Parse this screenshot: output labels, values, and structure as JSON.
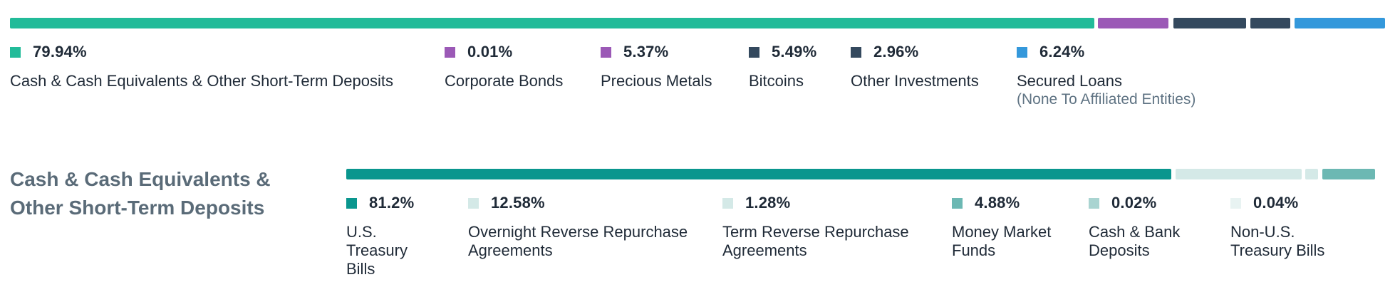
{
  "chart_data": [
    {
      "type": "bar",
      "stacked": true,
      "title": "",
      "unit": "%",
      "segments": [
        {
          "pct_label": "79.94%",
          "value": 79.94,
          "label": "Cash & Cash Equivalents & Other Short-Term Deposits",
          "sublabel": "",
          "color": "#22bb99"
        },
        {
          "pct_label": "0.01%",
          "value": 0.01,
          "label": "Corporate Bonds",
          "sublabel": "",
          "color": "#9b59b6"
        },
        {
          "pct_label": "5.37%",
          "value": 5.37,
          "label": "Precious Metals",
          "sublabel": "",
          "color": "#9b59b6"
        },
        {
          "pct_label": "5.49%",
          "value": 5.49,
          "label": "Bitcoins",
          "sublabel": "",
          "color": "#34495e"
        },
        {
          "pct_label": "2.96%",
          "value": 2.96,
          "label": "Other Investments",
          "sublabel": "",
          "color": "#34495e"
        },
        {
          "pct_label": "6.24%",
          "value": 6.24,
          "label": "Secured Loans",
          "sublabel": "(None To Affiliated Entities)",
          "color": "#3498db"
        }
      ]
    },
    {
      "type": "bar",
      "stacked": true,
      "title": "Cash & Cash Equivalents & Other Short-Term Deposits",
      "unit": "%",
      "segments": [
        {
          "pct_label": "81.2%",
          "value": 81.2,
          "label": "U.S. Treasury Bills",
          "color": "#0a968e"
        },
        {
          "pct_label": "12.58%",
          "value": 12.58,
          "label": "Overnight Reverse Repurchase Agreements",
          "color": "#d4e9e7"
        },
        {
          "pct_label": "1.28%",
          "value": 1.28,
          "label": "Term Reverse Repurchase Agreements",
          "color": "#d4e9e7"
        },
        {
          "pct_label": "4.88%",
          "value": 4.88,
          "label": "Money Market Funds",
          "color": "#6cb8b3"
        },
        {
          "pct_label": "0.02%",
          "value": 0.02,
          "label": "Cash & Bank Deposits",
          "color": "#a9d4d1"
        },
        {
          "pct_label": "0.04%",
          "value": 0.04,
          "label": "Non-U.S. Treasury Bills",
          "color": "#e8f3f2"
        }
      ]
    }
  ]
}
